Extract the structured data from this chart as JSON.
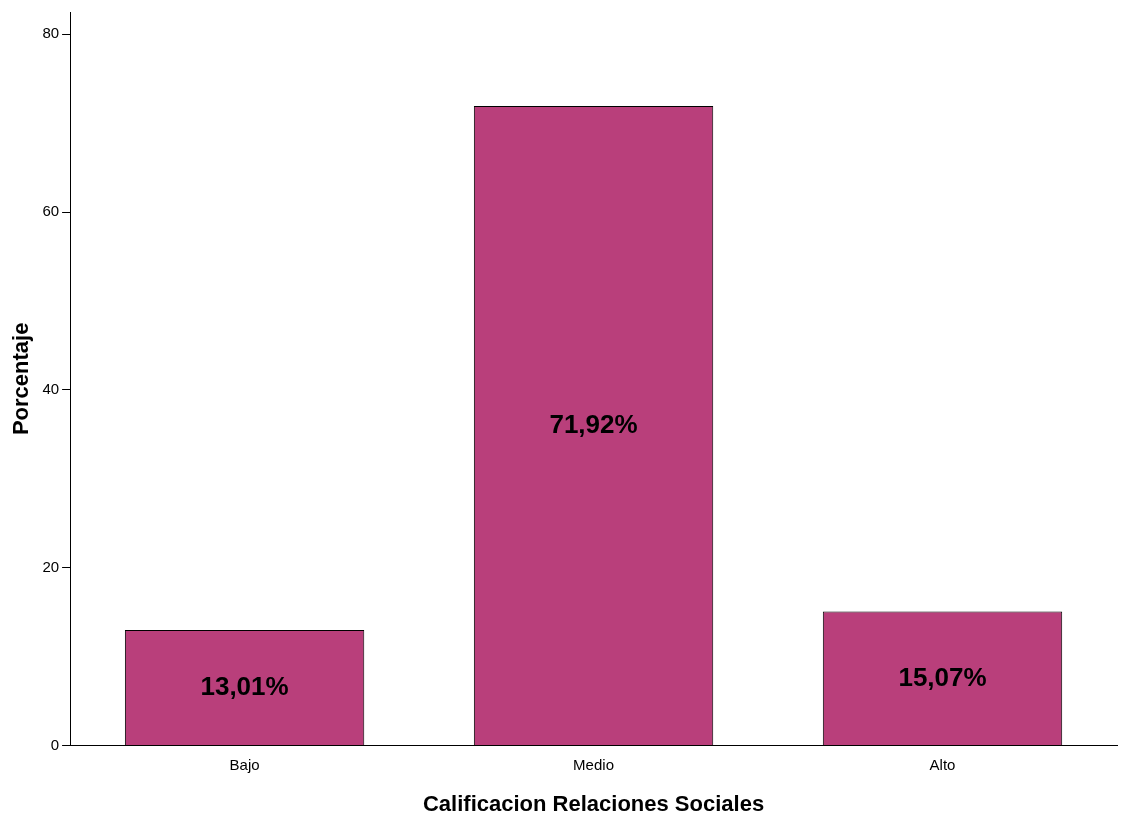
{
  "chart_data": {
    "type": "bar",
    "xlabel": "Calificacion Relaciones Sociales",
    "ylabel": "Porcentaje",
    "categories": [
      "Bajo",
      "Medio",
      "Alto"
    ],
    "values": [
      13.01,
      71.92,
      15.07
    ],
    "value_labels": [
      "13,01%",
      "71,92%",
      "15,07%"
    ],
    "color": "#b93f7b",
    "ylim": [
      0,
      82.5
    ],
    "yticks": [
      0,
      20,
      40,
      60,
      80
    ],
    "grid": false,
    "legend": false
  }
}
